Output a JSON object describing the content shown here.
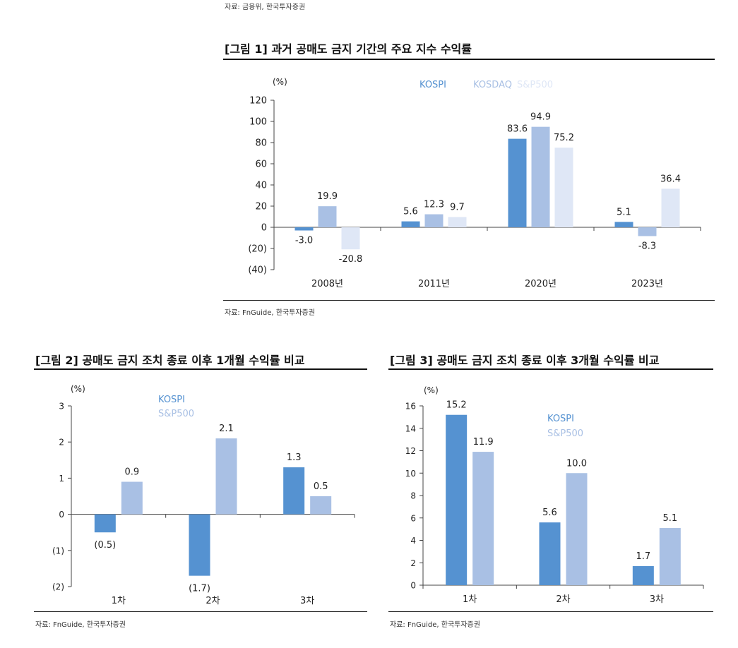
{
  "top_source": "자료: 금융위, 한국투자증권",
  "colors": {
    "kospi": "#5592d1",
    "kosdaq": "#a9c0e4",
    "sp500": "#dfe7f6",
    "axis": "#444444",
    "text": "#222222"
  },
  "chart_data": [
    {
      "id": "fig1",
      "type": "bar",
      "title": "[그림 1] 과거 공매도 금지 기간의 주요 지수 수익률",
      "unit": "(%)",
      "categories": [
        "2008년",
        "2011년",
        "2020년",
        "2023년"
      ],
      "series": [
        {
          "name": "KOSPI",
          "color_key": "kospi",
          "values": [
            -3.0,
            5.6,
            83.6,
            5.1
          ],
          "labels": [
            "-3.0",
            "5.6",
            "83.6",
            "5.1"
          ]
        },
        {
          "name": "KOSDAQ",
          "color_key": "kosdaq",
          "values": [
            19.9,
            12.3,
            94.9,
            -8.3
          ],
          "labels": [
            "19.9",
            "12.3",
            "94.9",
            "-8.3"
          ]
        },
        {
          "name": "S&P500",
          "color_key": "sp500",
          "values": [
            -20.8,
            9.7,
            75.2,
            36.4
          ],
          "labels": [
            "-20.8",
            "9.7",
            "75.2",
            "36.4"
          ]
        }
      ],
      "ylim": [
        -40,
        120
      ],
      "yticks": [
        -40,
        -20,
        0,
        20,
        40,
        60,
        80,
        100,
        120
      ],
      "ytick_labels": [
        "(40)",
        "(20)",
        "0",
        "20",
        "40",
        "60",
        "80",
        "100",
        "120"
      ],
      "legend_position": "top-right",
      "source": "자료: FnGuide, 한국투자증권"
    },
    {
      "id": "fig2",
      "type": "bar",
      "title": "[그림 2] 공매도 금지 조치 종료 이후 1개월 수익률 비교",
      "unit": "(%)",
      "categories": [
        "1차",
        "2차",
        "3차"
      ],
      "series": [
        {
          "name": "KOSPI",
          "color_key": "kospi",
          "values": [
            -0.5,
            -1.7,
            1.3
          ],
          "labels": [
            "(0.5)",
            "(1.7)",
            "1.3"
          ]
        },
        {
          "name": "S&P500",
          "color_key": "kosdaq",
          "values": [
            0.9,
            2.1,
            0.5
          ],
          "labels": [
            "0.9",
            "2.1",
            "0.5"
          ]
        }
      ],
      "ylim": [
        -2,
        3
      ],
      "yticks": [
        -2,
        -1,
        0,
        1,
        2,
        3
      ],
      "ytick_labels": [
        "(2)",
        "(1)",
        "0",
        "1",
        "2",
        "3"
      ],
      "legend_position": "top-center",
      "source": "자료: FnGuide, 한국투자증권"
    },
    {
      "id": "fig3",
      "type": "bar",
      "title": "[그림 3] 공매도 금지 조치 종료 이후 3개월 수익률 비교",
      "unit": "(%)",
      "categories": [
        "1차",
        "2차",
        "3차"
      ],
      "series": [
        {
          "name": "KOSPI",
          "color_key": "kospi",
          "values": [
            15.2,
            5.6,
            1.7
          ],
          "labels": [
            "15.2",
            "5.6",
            "1.7"
          ]
        },
        {
          "name": "S&P500",
          "color_key": "kosdaq",
          "values": [
            11.9,
            10.0,
            5.1
          ],
          "labels": [
            "11.9",
            "10.0",
            "5.1"
          ]
        }
      ],
      "ylim": [
        0,
        16
      ],
      "yticks": [
        0,
        2,
        4,
        6,
        8,
        10,
        12,
        14,
        16
      ],
      "ytick_labels": [
        "0",
        "2",
        "4",
        "6",
        "8",
        "10",
        "12",
        "14",
        "16"
      ],
      "legend_position": "top-center",
      "source": "자료: FnGuide, 한국투자증권"
    }
  ]
}
